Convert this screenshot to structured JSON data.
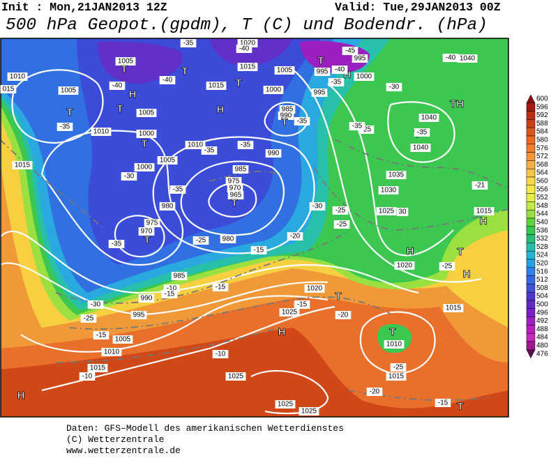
{
  "header": {
    "init": "Init : Mon,21JAN2013 12Z",
    "valid": "Valid: Tue,29JAN2013 00Z",
    "title": "500 hPa Geopot.(gpdm), T (C) und Bodendr. (hPa)"
  },
  "colorbar": {
    "ticks": [
      600,
      596,
      592,
      588,
      584,
      580,
      576,
      572,
      568,
      564,
      560,
      556,
      552,
      548,
      544,
      540,
      536,
      532,
      528,
      524,
      520,
      516,
      512,
      508,
      504,
      500,
      496,
      492,
      488,
      484,
      480,
      476
    ]
  },
  "map_labels": [
    "1005",
    "T",
    "T",
    "-35",
    "1020",
    "-40",
    "1015",
    "1005",
    "995",
    "-45",
    "995",
    "H",
    "1000",
    "-40",
    "T",
    "-35",
    "-30",
    "-40",
    "1040",
    "1010",
    "1005",
    "015",
    "-40",
    "-40",
    "H",
    "T",
    "1005",
    "1015",
    "T",
    "H",
    "1000",
    "995",
    "985",
    "990",
    "T",
    "-35",
    "T",
    "-35",
    "1010",
    "1000",
    "T",
    "1010",
    "-35",
    "-35",
    "990",
    "1005",
    "985",
    "1015",
    "1000",
    "-30",
    "975",
    "970",
    "-35",
    "965",
    "T",
    "980",
    "-30",
    "-25",
    "975",
    "970",
    "-25",
    "T",
    "-35",
    "-25",
    "980",
    "-20",
    "-15",
    "985",
    "-10",
    "-15",
    "990",
    "-15",
    "1020",
    "-15",
    "T",
    "-30",
    "995",
    "-25",
    "-20",
    "1025",
    "H",
    "1005",
    "-15",
    "1010",
    "-10",
    "1015",
    "-10",
    "1025",
    "H",
    "1025",
    "1025",
    "1015",
    "-20",
    "-15",
    "T",
    "T",
    "1010",
    "-25",
    "1015",
    "-25",
    "H",
    "T",
    "H",
    "1020",
    "H",
    "1015",
    "-21",
    "1035",
    "1030",
    "1025",
    "30",
    "T",
    "1040",
    "-35",
    "1040",
    "TH",
    "-25",
    "-35"
  ],
  "footer": [
    "Daten: GFS–Modell des amerikanischen Wetterdienstes",
    "(C) Wetterzentrale",
    "www.wetterzentrale.de"
  ]
}
